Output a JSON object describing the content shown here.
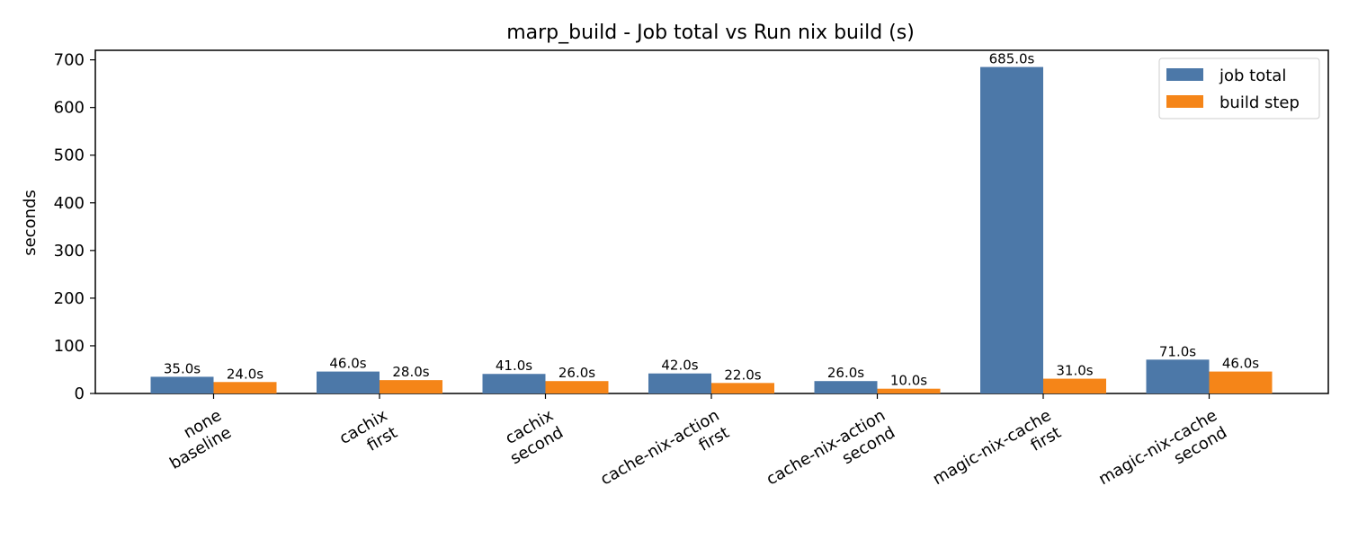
{
  "chart_data": {
    "type": "bar",
    "title": "marp_build - Job total vs Run nix build (s)",
    "xlabel": "",
    "ylabel": "seconds",
    "ylim": [
      0,
      720
    ],
    "yticks": [
      0,
      100,
      200,
      300,
      400,
      500,
      600,
      700
    ],
    "categories": [
      [
        "none",
        "baseline"
      ],
      [
        "cachix",
        "first"
      ],
      [
        "cachix",
        "second"
      ],
      [
        "cache-nix-action",
        "first"
      ],
      [
        "cache-nix-action",
        "second"
      ],
      [
        "magic-nix-cache",
        "first"
      ],
      [
        "magic-nix-cache",
        "second"
      ]
    ],
    "series": [
      {
        "name": "job total",
        "color": "#4c78a8",
        "values": [
          35.0,
          46.0,
          41.0,
          42.0,
          26.0,
          685.0,
          71.0
        ],
        "labels": [
          "35.0s",
          "46.0s",
          "41.0s",
          "42.0s",
          "26.0s",
          "685.0s",
          "71.0s"
        ]
      },
      {
        "name": "build step",
        "color": "#f58518",
        "values": [
          24.0,
          28.0,
          26.0,
          22.0,
          10.0,
          31.0,
          46.0
        ],
        "labels": [
          "24.0s",
          "28.0s",
          "26.0s",
          "22.0s",
          "10.0s",
          "31.0s",
          "46.0s"
        ]
      }
    ],
    "grid": false,
    "legend_position": "top-right"
  }
}
